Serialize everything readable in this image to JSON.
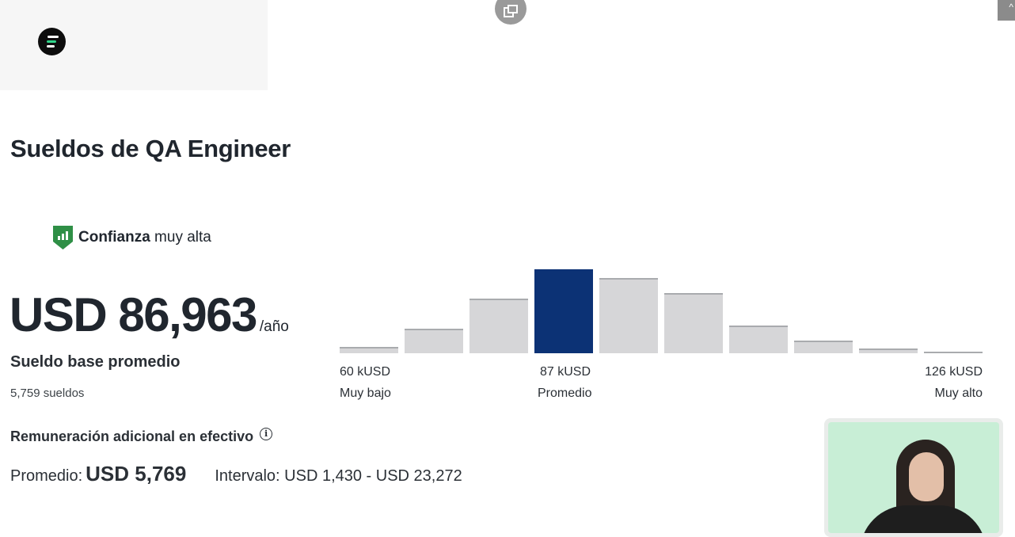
{
  "page": {
    "title": "Sueldos de QA Engineer"
  },
  "confidence": {
    "label_bold": "Confianza",
    "label_rest": " muy alta",
    "color": "#2f8f46"
  },
  "salary": {
    "value": "USD 86,963",
    "unit": "/año",
    "label": "Sueldo base promedio",
    "count": "5,759 sueldos"
  },
  "additional_cash": {
    "label": "Remuneración adicional en efectivo",
    "average_label": "Promedio:",
    "average_value": "USD 5,769",
    "range": "Intervalo: USD 1,430 - USD 23,272"
  },
  "histogram": {
    "accent": "#0c3275",
    "bar_color": "#d6d6d8",
    "active_index": 3,
    "levels": [
      0.08,
      0.29,
      0.65,
      1.0,
      0.9,
      0.72,
      0.33,
      0.15,
      0.06,
      0.01
    ],
    "labels": {
      "low_value": "60 kUSD",
      "low_label": "Muy bajo",
      "mid_value": "87 kUSD",
      "mid_label": "Promedio",
      "high_value": "126 kUSD",
      "high_label": "Muy alto"
    }
  },
  "icons": {
    "logo": "glassdoor-logo-icon",
    "popout": "popout-icon",
    "shield": "shield-chart-icon",
    "info": "info-icon"
  }
}
